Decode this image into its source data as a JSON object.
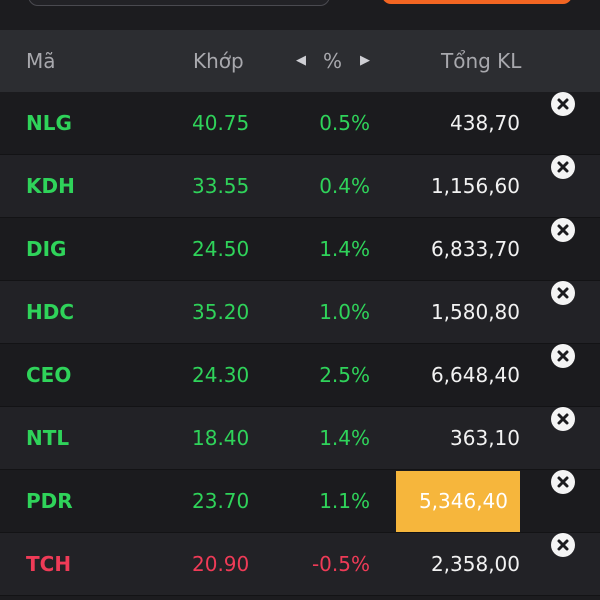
{
  "header": {
    "code": "Mã",
    "match": "Khớp",
    "pct": "%",
    "volume": "Tổng KL"
  },
  "colors": {
    "up": "#2fd35a",
    "down": "#ef3b57",
    "highlight": "#f6b63c",
    "accent": "#f26522"
  },
  "rows": [
    {
      "code": "NLG",
      "price": "40.75",
      "pct": "0.5%",
      "volume": "438,70",
      "trend": "up"
    },
    {
      "code": "KDH",
      "price": "33.55",
      "pct": "0.4%",
      "volume": "1,156,60",
      "trend": "up"
    },
    {
      "code": "DIG",
      "price": "24.50",
      "pct": "1.4%",
      "volume": "6,833,70",
      "trend": "up"
    },
    {
      "code": "HDC",
      "price": "35.20",
      "pct": "1.0%",
      "volume": "1,580,80",
      "trend": "up"
    },
    {
      "code": "CEO",
      "price": "24.30",
      "pct": "2.5%",
      "volume": "6,648,40",
      "trend": "up"
    },
    {
      "code": "NTL",
      "price": "18.40",
      "pct": "1.4%",
      "volume": "363,10",
      "trend": "up"
    },
    {
      "code": "PDR",
      "price": "23.70",
      "pct": "1.1%",
      "volume": "5,346,40",
      "trend": "up",
      "highlight": true
    },
    {
      "code": "TCH",
      "price": "20.90",
      "pct": "-0.5%",
      "volume": "2,358,00",
      "trend": "down"
    }
  ]
}
